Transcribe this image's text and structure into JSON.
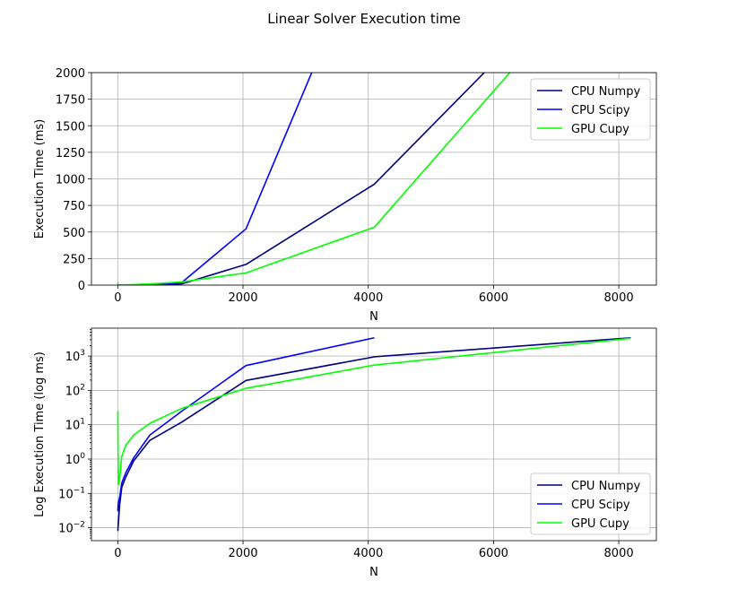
{
  "figure": {
    "title": "Linear Solver Execution time"
  },
  "chart_data": [
    {
      "type": "line",
      "xlabel": "N",
      "ylabel": "Execution Time (ms)",
      "xlim": [
        -420,
        8600
      ],
      "ylim": [
        0,
        2000
      ],
      "yscale": "linear",
      "xticks": [
        0,
        2000,
        4000,
        6000,
        8000
      ],
      "xtick_labels": [
        "0",
        "2000",
        "4000",
        "6000",
        "8000"
      ],
      "yticks": [
        0,
        250,
        500,
        750,
        1000,
        1250,
        1500,
        1750,
        2000
      ],
      "ytick_labels": [
        "0",
        "250",
        "500",
        "750",
        "1000",
        "1250",
        "1500",
        "1750",
        "2000"
      ],
      "grid": true,
      "legend": "top-right",
      "series": [
        {
          "name": "CPU Numpy",
          "color": "#000080",
          "x": [
            2,
            4,
            8,
            16,
            32,
            64,
            128,
            256,
            512,
            1024,
            2048,
            4096,
            8192
          ],
          "y": [
            0.008,
            0.01,
            0.012,
            0.02,
            0.05,
            0.15,
            0.3,
            0.9,
            3.5,
            12,
            195,
            950,
            3400
          ]
        },
        {
          "name": "CPU Scipy",
          "color": "#0000ff",
          "x": [
            2,
            4,
            8,
            16,
            32,
            64,
            128,
            256,
            512,
            1024,
            2048,
            4096
          ],
          "y": [
            0.03,
            0.04,
            0.05,
            0.06,
            0.08,
            0.2,
            0.4,
            1.1,
            5,
            25,
            530,
            3400
          ]
        },
        {
          "name": "GPU Cupy",
          "color": "#00ff00",
          "x": [
            2,
            4,
            8,
            16,
            32,
            64,
            128,
            256,
            512,
            1024,
            2048,
            4096,
            8192
          ],
          "y": [
            25,
            3,
            0.5,
            0.18,
            0.3,
            1.2,
            2.5,
            5,
            11,
            30,
            115,
            545,
            3300
          ]
        }
      ]
    },
    {
      "type": "line",
      "xlabel": "N",
      "ylabel": "Log Execution Time (log ms)",
      "xlim": [
        -420,
        8600
      ],
      "ylim": [
        0.0042,
        6500
      ],
      "yscale": "log",
      "xticks": [
        0,
        2000,
        4000,
        6000,
        8000
      ],
      "xtick_labels": [
        "0",
        "2000",
        "4000",
        "6000",
        "8000"
      ],
      "yticks": [
        0.01,
        0.1,
        1,
        10,
        100,
        1000
      ],
      "ytick_bases": [
        "10",
        "10",
        "10",
        "10",
        "10",
        "10"
      ],
      "ytick_exponents": [
        "−2",
        "−1",
        "0",
        "1",
        "2",
        "3"
      ],
      "grid": true,
      "legend": "bottom-right",
      "series": [
        {
          "name": "CPU Numpy",
          "color": "#000080",
          "x": [
            2,
            4,
            8,
            16,
            32,
            64,
            128,
            256,
            512,
            1024,
            2048,
            4096,
            8192
          ],
          "y": [
            0.008,
            0.01,
            0.012,
            0.02,
            0.05,
            0.15,
            0.3,
            0.9,
            3.5,
            12,
            195,
            950,
            3400
          ]
        },
        {
          "name": "CPU Scipy",
          "color": "#0000ff",
          "x": [
            2,
            4,
            8,
            16,
            32,
            64,
            128,
            256,
            512,
            1024,
            2048,
            4096
          ],
          "y": [
            0.03,
            0.04,
            0.05,
            0.06,
            0.08,
            0.2,
            0.4,
            1.1,
            5,
            25,
            530,
            3400
          ]
        },
        {
          "name": "GPU Cupy",
          "color": "#00ff00",
          "x": [
            2,
            4,
            8,
            16,
            32,
            64,
            128,
            256,
            512,
            1024,
            2048,
            4096,
            8192
          ],
          "y": [
            25,
            3,
            0.5,
            0.18,
            0.3,
            1.2,
            2.5,
            5,
            11,
            30,
            115,
            545,
            3300
          ]
        }
      ]
    }
  ]
}
